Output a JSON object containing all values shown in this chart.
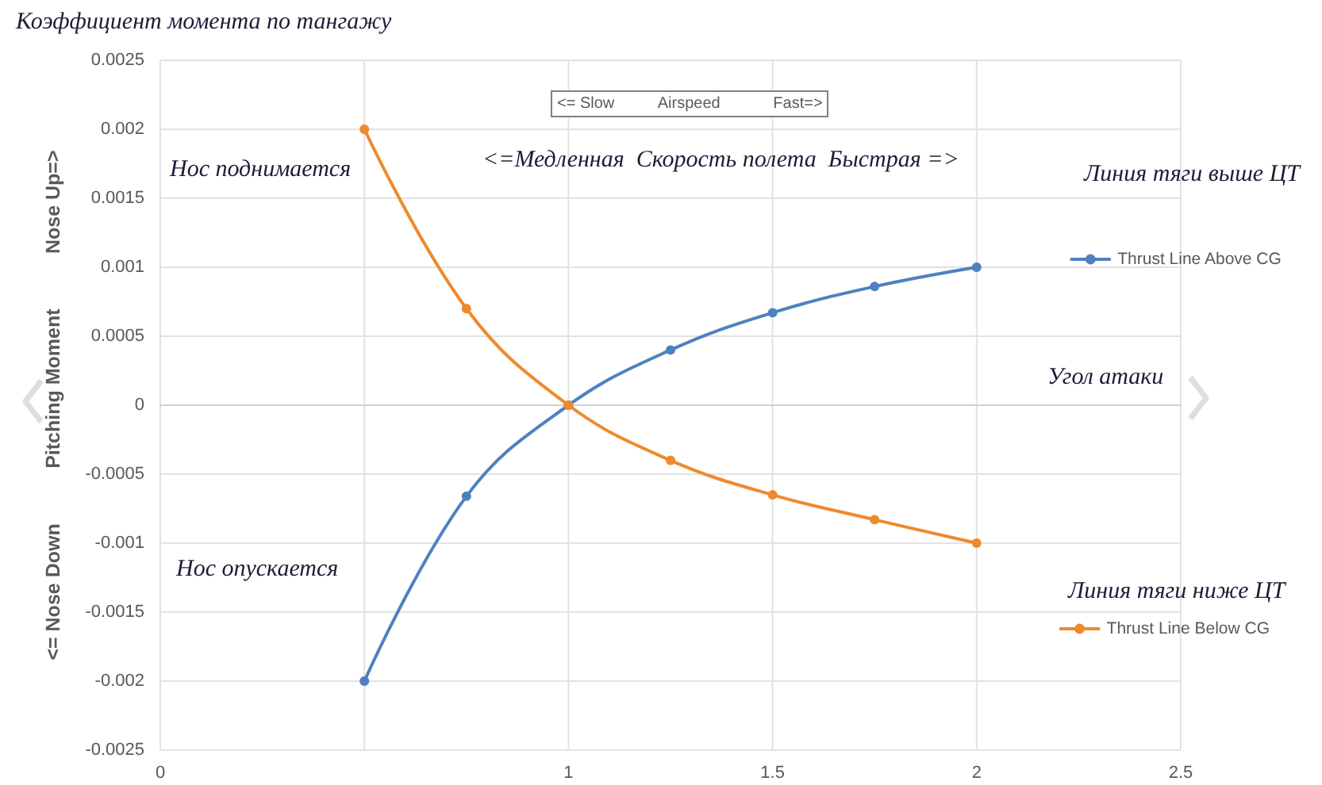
{
  "chart_data": {
    "type": "line",
    "title": "Коэффициент момента по тангажу",
    "xlabel": "Угол атаки",
    "ylabel": "<= Nose Down          Pitching Moment          Nose Up=>",
    "x": [
      0.5,
      0.75,
      1,
      1.25,
      1.5,
      1.75,
      2
    ],
    "series": [
      {
        "name": "Thrust Line Above CG",
        "color": "#4e81c0",
        "values": [
          -0.002,
          -0.00066,
          0,
          0.0004,
          0.00067,
          0.00086,
          0.001
        ]
      },
      {
        "name": "Thrust Line Below CG",
        "color": "#ee8a2c",
        "values": [
          0.002,
          0.0007,
          0,
          -0.0004,
          -0.00065,
          -0.00083,
          -0.001
        ]
      }
    ],
    "xlim": [
      0,
      2.5
    ],
    "xticks": [
      0,
      {
        "value": 0.5,
        "label": null
      },
      1,
      1.5,
      2,
      2.5
    ],
    "ylim": [
      -0.0025,
      0.0025
    ],
    "yticks": [
      -0.0025,
      -0.002,
      -0.0015,
      -0.001,
      -0.0005,
      0,
      0.0005,
      0.001,
      0.0015,
      0.002,
      0.0025
    ],
    "grid": true,
    "legend": "right",
    "marker": "circle",
    "line_style": "solid",
    "annotations": [
      "Нос поднимается",
      "Нос опускается",
      "<= Slow          Airspeed            Fast=>",
      "<=Медленная  Скорость полета  Быстрая =>",
      "Линия тяги выше ЦТ",
      "Линия тяги ниже ЦТ"
    ]
  }
}
